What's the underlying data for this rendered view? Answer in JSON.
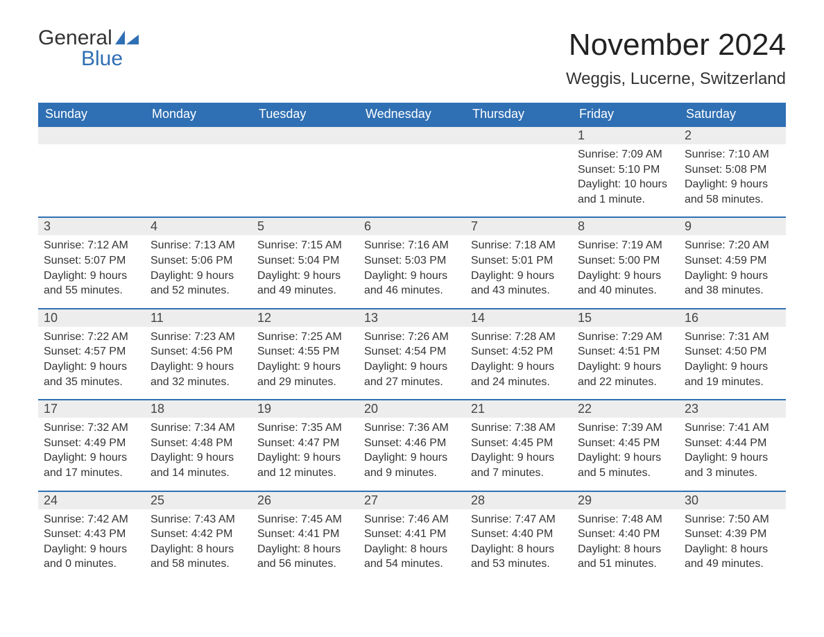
{
  "logo": {
    "word1": "General",
    "word2": "Blue"
  },
  "title": "November 2024",
  "location": "Weggis, Lucerne, Switzerland",
  "colors": {
    "header_bg": "#2f6fb3",
    "header_text": "#ffffff",
    "daynum_bg": "#ededed",
    "row_border": "#2f6fb3",
    "body_text": "#333333",
    "logo_blue": "#2f6fb3"
  },
  "typography": {
    "title_fontsize": 44,
    "location_fontsize": 24,
    "header_fontsize": 18,
    "cell_fontsize": 16,
    "font_family": "Arial"
  },
  "weekdays": [
    "Sunday",
    "Monday",
    "Tuesday",
    "Wednesday",
    "Thursday",
    "Friday",
    "Saturday"
  ],
  "weeks": [
    [
      null,
      null,
      null,
      null,
      null,
      {
        "day": "1",
        "sunrise": "Sunrise: 7:09 AM",
        "sunset": "Sunset: 5:10 PM",
        "daylight1": "Daylight: 10 hours",
        "daylight2": "and 1 minute."
      },
      {
        "day": "2",
        "sunrise": "Sunrise: 7:10 AM",
        "sunset": "Sunset: 5:08 PM",
        "daylight1": "Daylight: 9 hours",
        "daylight2": "and 58 minutes."
      }
    ],
    [
      {
        "day": "3",
        "sunrise": "Sunrise: 7:12 AM",
        "sunset": "Sunset: 5:07 PM",
        "daylight1": "Daylight: 9 hours",
        "daylight2": "and 55 minutes."
      },
      {
        "day": "4",
        "sunrise": "Sunrise: 7:13 AM",
        "sunset": "Sunset: 5:06 PM",
        "daylight1": "Daylight: 9 hours",
        "daylight2": "and 52 minutes."
      },
      {
        "day": "5",
        "sunrise": "Sunrise: 7:15 AM",
        "sunset": "Sunset: 5:04 PM",
        "daylight1": "Daylight: 9 hours",
        "daylight2": "and 49 minutes."
      },
      {
        "day": "6",
        "sunrise": "Sunrise: 7:16 AM",
        "sunset": "Sunset: 5:03 PM",
        "daylight1": "Daylight: 9 hours",
        "daylight2": "and 46 minutes."
      },
      {
        "day": "7",
        "sunrise": "Sunrise: 7:18 AM",
        "sunset": "Sunset: 5:01 PM",
        "daylight1": "Daylight: 9 hours",
        "daylight2": "and 43 minutes."
      },
      {
        "day": "8",
        "sunrise": "Sunrise: 7:19 AM",
        "sunset": "Sunset: 5:00 PM",
        "daylight1": "Daylight: 9 hours",
        "daylight2": "and 40 minutes."
      },
      {
        "day": "9",
        "sunrise": "Sunrise: 7:20 AM",
        "sunset": "Sunset: 4:59 PM",
        "daylight1": "Daylight: 9 hours",
        "daylight2": "and 38 minutes."
      }
    ],
    [
      {
        "day": "10",
        "sunrise": "Sunrise: 7:22 AM",
        "sunset": "Sunset: 4:57 PM",
        "daylight1": "Daylight: 9 hours",
        "daylight2": "and 35 minutes."
      },
      {
        "day": "11",
        "sunrise": "Sunrise: 7:23 AM",
        "sunset": "Sunset: 4:56 PM",
        "daylight1": "Daylight: 9 hours",
        "daylight2": "and 32 minutes."
      },
      {
        "day": "12",
        "sunrise": "Sunrise: 7:25 AM",
        "sunset": "Sunset: 4:55 PM",
        "daylight1": "Daylight: 9 hours",
        "daylight2": "and 29 minutes."
      },
      {
        "day": "13",
        "sunrise": "Sunrise: 7:26 AM",
        "sunset": "Sunset: 4:54 PM",
        "daylight1": "Daylight: 9 hours",
        "daylight2": "and 27 minutes."
      },
      {
        "day": "14",
        "sunrise": "Sunrise: 7:28 AM",
        "sunset": "Sunset: 4:52 PM",
        "daylight1": "Daylight: 9 hours",
        "daylight2": "and 24 minutes."
      },
      {
        "day": "15",
        "sunrise": "Sunrise: 7:29 AM",
        "sunset": "Sunset: 4:51 PM",
        "daylight1": "Daylight: 9 hours",
        "daylight2": "and 22 minutes."
      },
      {
        "day": "16",
        "sunrise": "Sunrise: 7:31 AM",
        "sunset": "Sunset: 4:50 PM",
        "daylight1": "Daylight: 9 hours",
        "daylight2": "and 19 minutes."
      }
    ],
    [
      {
        "day": "17",
        "sunrise": "Sunrise: 7:32 AM",
        "sunset": "Sunset: 4:49 PM",
        "daylight1": "Daylight: 9 hours",
        "daylight2": "and 17 minutes."
      },
      {
        "day": "18",
        "sunrise": "Sunrise: 7:34 AM",
        "sunset": "Sunset: 4:48 PM",
        "daylight1": "Daylight: 9 hours",
        "daylight2": "and 14 minutes."
      },
      {
        "day": "19",
        "sunrise": "Sunrise: 7:35 AM",
        "sunset": "Sunset: 4:47 PM",
        "daylight1": "Daylight: 9 hours",
        "daylight2": "and 12 minutes."
      },
      {
        "day": "20",
        "sunrise": "Sunrise: 7:36 AM",
        "sunset": "Sunset: 4:46 PM",
        "daylight1": "Daylight: 9 hours",
        "daylight2": "and 9 minutes."
      },
      {
        "day": "21",
        "sunrise": "Sunrise: 7:38 AM",
        "sunset": "Sunset: 4:45 PM",
        "daylight1": "Daylight: 9 hours",
        "daylight2": "and 7 minutes."
      },
      {
        "day": "22",
        "sunrise": "Sunrise: 7:39 AM",
        "sunset": "Sunset: 4:45 PM",
        "daylight1": "Daylight: 9 hours",
        "daylight2": "and 5 minutes."
      },
      {
        "day": "23",
        "sunrise": "Sunrise: 7:41 AM",
        "sunset": "Sunset: 4:44 PM",
        "daylight1": "Daylight: 9 hours",
        "daylight2": "and 3 minutes."
      }
    ],
    [
      {
        "day": "24",
        "sunrise": "Sunrise: 7:42 AM",
        "sunset": "Sunset: 4:43 PM",
        "daylight1": "Daylight: 9 hours",
        "daylight2": "and 0 minutes."
      },
      {
        "day": "25",
        "sunrise": "Sunrise: 7:43 AM",
        "sunset": "Sunset: 4:42 PM",
        "daylight1": "Daylight: 8 hours",
        "daylight2": "and 58 minutes."
      },
      {
        "day": "26",
        "sunrise": "Sunrise: 7:45 AM",
        "sunset": "Sunset: 4:41 PM",
        "daylight1": "Daylight: 8 hours",
        "daylight2": "and 56 minutes."
      },
      {
        "day": "27",
        "sunrise": "Sunrise: 7:46 AM",
        "sunset": "Sunset: 4:41 PM",
        "daylight1": "Daylight: 8 hours",
        "daylight2": "and 54 minutes."
      },
      {
        "day": "28",
        "sunrise": "Sunrise: 7:47 AM",
        "sunset": "Sunset: 4:40 PM",
        "daylight1": "Daylight: 8 hours",
        "daylight2": "and 53 minutes."
      },
      {
        "day": "29",
        "sunrise": "Sunrise: 7:48 AM",
        "sunset": "Sunset: 4:40 PM",
        "daylight1": "Daylight: 8 hours",
        "daylight2": "and 51 minutes."
      },
      {
        "day": "30",
        "sunrise": "Sunrise: 7:50 AM",
        "sunset": "Sunset: 4:39 PM",
        "daylight1": "Daylight: 8 hours",
        "daylight2": "and 49 minutes."
      }
    ]
  ]
}
